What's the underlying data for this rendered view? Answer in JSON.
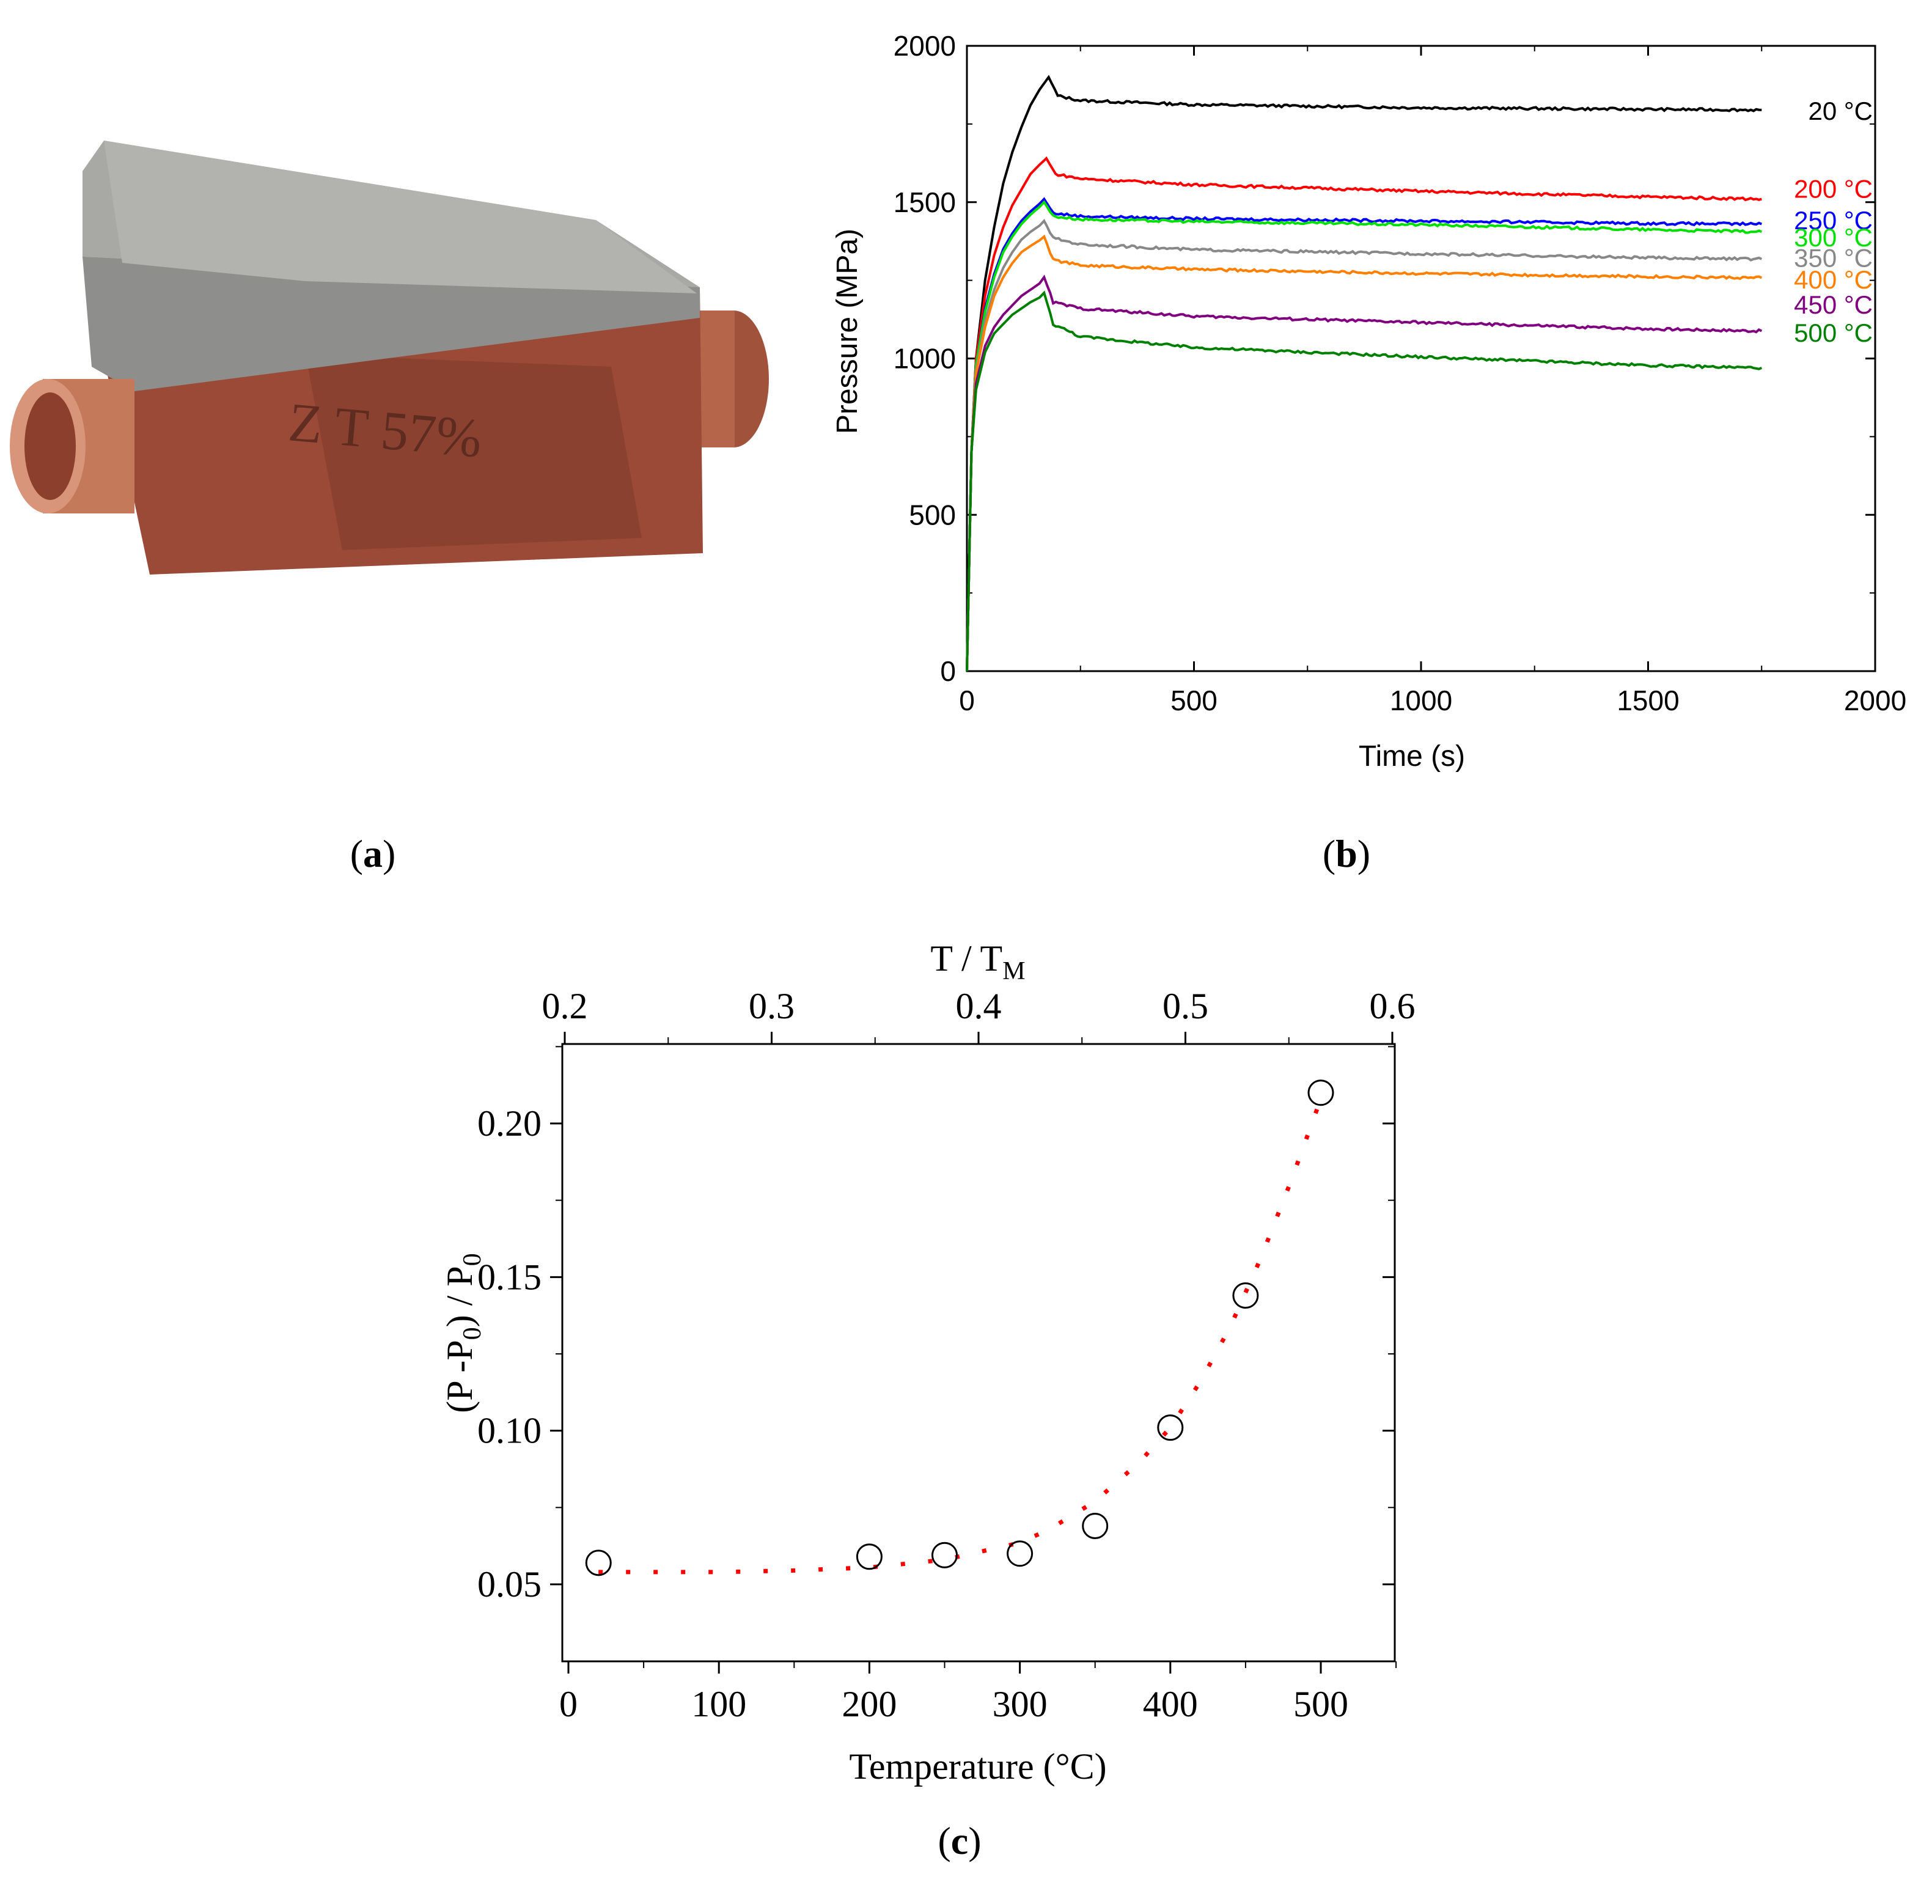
{
  "panel_labels": {
    "a": "a",
    "b": "b",
    "c": "c"
  },
  "photo": {
    "engraving": "Z T 57%"
  },
  "chart_data": [
    {
      "type": "line",
      "panel": "b",
      "xlabel": "Time (s)",
      "ylabel": "Pressure (MPa)",
      "xlim": [
        0,
        2000
      ],
      "ylim": [
        0,
        2000
      ],
      "xticks": [
        0,
        500,
        1000,
        1500,
        2000
      ],
      "yticks": [
        0,
        500,
        1000,
        1500,
        2000
      ],
      "series": [
        {
          "name": "20 °C",
          "color": "#000000",
          "peak_time": 180,
          "peak": 1900,
          "points": [
            [
              0,
              0
            ],
            [
              10,
              700
            ],
            [
              20,
              1000
            ],
            [
              40,
              1250
            ],
            [
              60,
              1420
            ],
            [
              80,
              1560
            ],
            [
              100,
              1660
            ],
            [
              120,
              1740
            ],
            [
              140,
              1810
            ],
            [
              160,
              1860
            ],
            [
              180,
              1900
            ],
            [
              200,
              1840
            ],
            [
              250,
              1825
            ],
            [
              500,
              1812
            ],
            [
              1000,
              1802
            ],
            [
              1500,
              1797
            ],
            [
              1750,
              1795
            ]
          ]
        },
        {
          "name": "200 °C",
          "color": "#ff0000",
          "peak_time": 175,
          "peak": 1640,
          "points": [
            [
              0,
              0
            ],
            [
              10,
              700
            ],
            [
              20,
              1000
            ],
            [
              40,
              1200
            ],
            [
              60,
              1330
            ],
            [
              80,
              1420
            ],
            [
              100,
              1490
            ],
            [
              120,
              1540
            ],
            [
              140,
              1590
            ],
            [
              160,
              1620
            ],
            [
              175,
              1640
            ],
            [
              195,
              1590
            ],
            [
              250,
              1575
            ],
            [
              500,
              1556
            ],
            [
              1000,
              1535
            ],
            [
              1500,
              1517
            ],
            [
              1750,
              1510
            ]
          ]
        },
        {
          "name": "250 °C",
          "color": "#0000ff",
          "peak_time": 170,
          "peak": 1510,
          "points": [
            [
              0,
              0
            ],
            [
              10,
              700
            ],
            [
              20,
              980
            ],
            [
              40,
              1160
            ],
            [
              60,
              1270
            ],
            [
              80,
              1350
            ],
            [
              100,
              1400
            ],
            [
              120,
              1440
            ],
            [
              140,
              1470
            ],
            [
              160,
              1495
            ],
            [
              170,
              1510
            ],
            [
              190,
              1465
            ],
            [
              250,
              1455
            ],
            [
              500,
              1447
            ],
            [
              1000,
              1440
            ],
            [
              1500,
              1432
            ],
            [
              1750,
              1430
            ]
          ]
        },
        {
          "name": "300 °C",
          "color": "#00e000",
          "peak_time": 170,
          "peak": 1500,
          "points": [
            [
              0,
              0
            ],
            [
              10,
              700
            ],
            [
              20,
              980
            ],
            [
              40,
              1150
            ],
            [
              60,
              1260
            ],
            [
              80,
              1340
            ],
            [
              100,
              1390
            ],
            [
              120,
              1430
            ],
            [
              140,
              1460
            ],
            [
              160,
              1485
            ],
            [
              170,
              1500
            ],
            [
              190,
              1455
            ],
            [
              250,
              1445
            ],
            [
              500,
              1438
            ],
            [
              1000,
              1428
            ],
            [
              1500,
              1412
            ],
            [
              1750,
              1405
            ]
          ]
        },
        {
          "name": "350 °C",
          "color": "#888888",
          "peak_time": 170,
          "peak": 1440,
          "points": [
            [
              0,
              0
            ],
            [
              10,
              700
            ],
            [
              20,
              960
            ],
            [
              40,
              1120
            ],
            [
              60,
              1220
            ],
            [
              80,
              1290
            ],
            [
              100,
              1340
            ],
            [
              120,
              1380
            ],
            [
              140,
              1405
            ],
            [
              160,
              1425
            ],
            [
              170,
              1440
            ],
            [
              190,
              1385
            ],
            [
              250,
              1365
            ],
            [
              500,
              1348
            ],
            [
              1000,
              1335
            ],
            [
              1500,
              1322
            ],
            [
              1750,
              1318
            ]
          ]
        },
        {
          "name": "400 °C",
          "color": "#ff8000",
          "peak_time": 170,
          "peak": 1390,
          "points": [
            [
              0,
              0
            ],
            [
              10,
              700
            ],
            [
              20,
              950
            ],
            [
              40,
              1100
            ],
            [
              60,
              1200
            ],
            [
              80,
              1260
            ],
            [
              100,
              1305
            ],
            [
              120,
              1340
            ],
            [
              140,
              1360
            ],
            [
              160,
              1378
            ],
            [
              170,
              1390
            ],
            [
              190,
              1315
            ],
            [
              250,
              1298
            ],
            [
              500,
              1285
            ],
            [
              1000,
              1272
            ],
            [
              1500,
              1262
            ],
            [
              1750,
              1258
            ]
          ]
        },
        {
          "name": "450 °C",
          "color": "#800080",
          "peak_time": 170,
          "peak": 1260,
          "points": [
            [
              0,
              0
            ],
            [
              10,
              700
            ],
            [
              20,
              920
            ],
            [
              40,
              1040
            ],
            [
              60,
              1100
            ],
            [
              80,
              1140
            ],
            [
              100,
              1170
            ],
            [
              120,
              1200
            ],
            [
              140,
              1220
            ],
            [
              160,
              1240
            ],
            [
              170,
              1260
            ],
            [
              190,
              1180
            ],
            [
              250,
              1160
            ],
            [
              500,
              1135
            ],
            [
              1000,
              1115
            ],
            [
              1500,
              1095
            ],
            [
              1750,
              1088
            ]
          ]
        },
        {
          "name": "500 °C",
          "color": "#008000",
          "peak_time": 170,
          "peak": 1210,
          "points": [
            [
              0,
              0
            ],
            [
              10,
              700
            ],
            [
              20,
              900
            ],
            [
              40,
              1020
            ],
            [
              60,
              1080
            ],
            [
              80,
              1110
            ],
            [
              100,
              1140
            ],
            [
              120,
              1160
            ],
            [
              140,
              1180
            ],
            [
              160,
              1195
            ],
            [
              170,
              1210
            ],
            [
              190,
              1110
            ],
            [
              250,
              1070
            ],
            [
              500,
              1035
            ],
            [
              1000,
              1005
            ],
            [
              1500,
              978
            ],
            [
              1750,
              970
            ]
          ]
        }
      ]
    },
    {
      "type": "scatter",
      "panel": "c",
      "xlabel": "Temperature (°C)",
      "ylabel_main": "(P -P",
      "ylabel_sub1": "0",
      "ylabel_mid": ") / P",
      "ylabel_sub2": "0",
      "x2label_main": "T / T",
      "x2label_sub": "M",
      "xlim": [
        0,
        550
      ],
      "ylim": [
        0.025,
        0.225
      ],
      "x2lim": [
        0.2,
        0.6
      ],
      "xticks": [
        0,
        100,
        200,
        300,
        400,
        500
      ],
      "yticks": [
        0.05,
        0.1,
        0.15,
        0.2
      ],
      "ytick_labels": [
        "0.05",
        "0.10",
        "0.15",
        "0.20"
      ],
      "x2ticks": [
        0.2,
        0.3,
        0.4,
        0.5,
        0.6
      ],
      "x": [
        20,
        200,
        250,
        300,
        350,
        400,
        450,
        500
      ],
      "y": [
        0.057,
        0.059,
        0.0595,
        0.06,
        0.069,
        0.101,
        0.144,
        0.21
      ],
      "fit_color": "#ff0000",
      "fit": {
        "x": [
          20,
          50,
          100,
          150,
          200,
          250,
          300,
          320,
          350,
          380,
          400,
          420,
          440,
          460,
          480,
          500
        ],
        "y": [
          0.054,
          0.054,
          0.054,
          0.0545,
          0.0555,
          0.058,
          0.0635,
          0.068,
          0.077,
          0.09,
          0.101,
          0.116,
          0.134,
          0.156,
          0.181,
          0.208
        ]
      }
    }
  ]
}
